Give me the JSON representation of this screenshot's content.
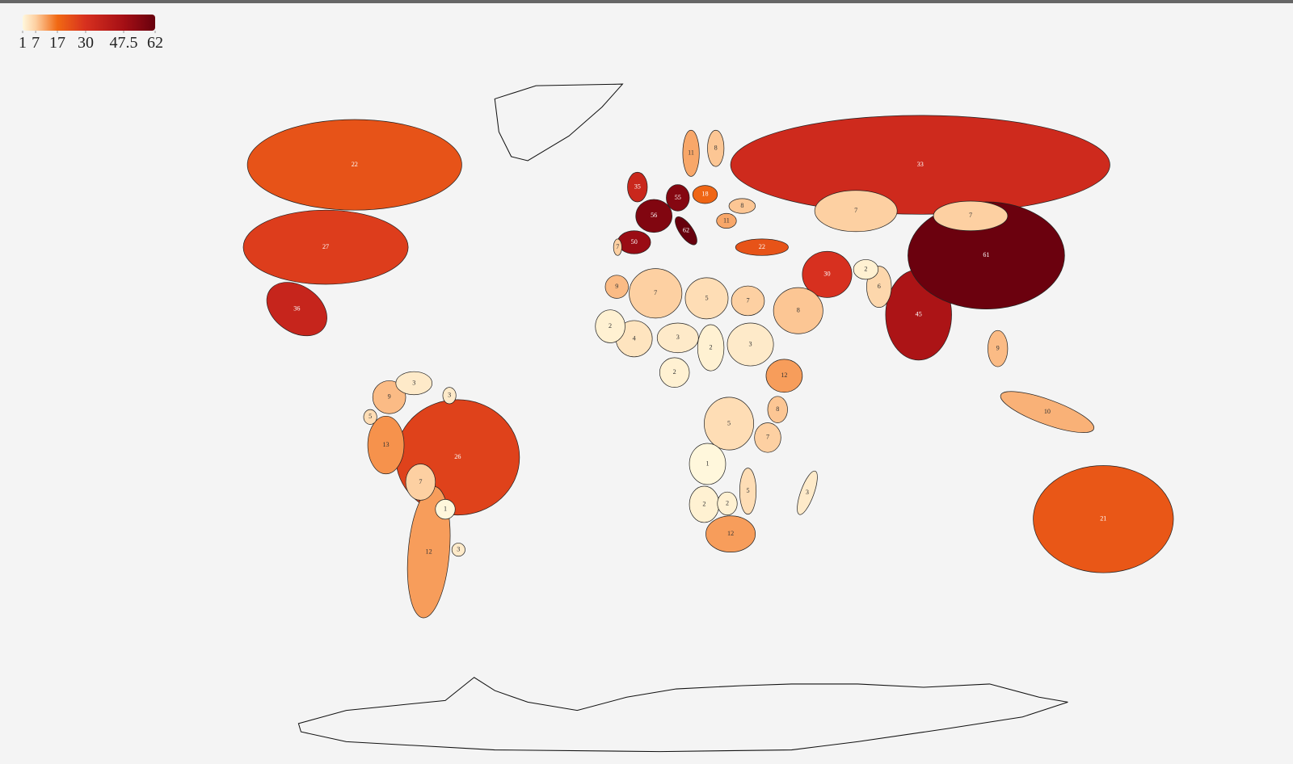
{
  "legend": {
    "ticks": [
      1,
      7,
      17,
      30,
      47.5,
      62
    ],
    "colors": [
      "#fff7dc",
      "#fdd0a2",
      "#f16913",
      "#d7301f",
      "#a50f15",
      "#67000d"
    ]
  },
  "map": {
    "type": "choropleth",
    "values": [
      22,
      27,
      36,
      26,
      12,
      13,
      9,
      3,
      7,
      1,
      3,
      5,
      3,
      35,
      56,
      55,
      50,
      7,
      62,
      18,
      11,
      8,
      33,
      22,
      30,
      45,
      61,
      7,
      7,
      6,
      2,
      8,
      7,
      5,
      7,
      9,
      4,
      2,
      3,
      2,
      3,
      12,
      2,
      8,
      7,
      5,
      1,
      2,
      2,
      5,
      12,
      3,
      10,
      9,
      21,
      11,
      8
    ]
  }
}
